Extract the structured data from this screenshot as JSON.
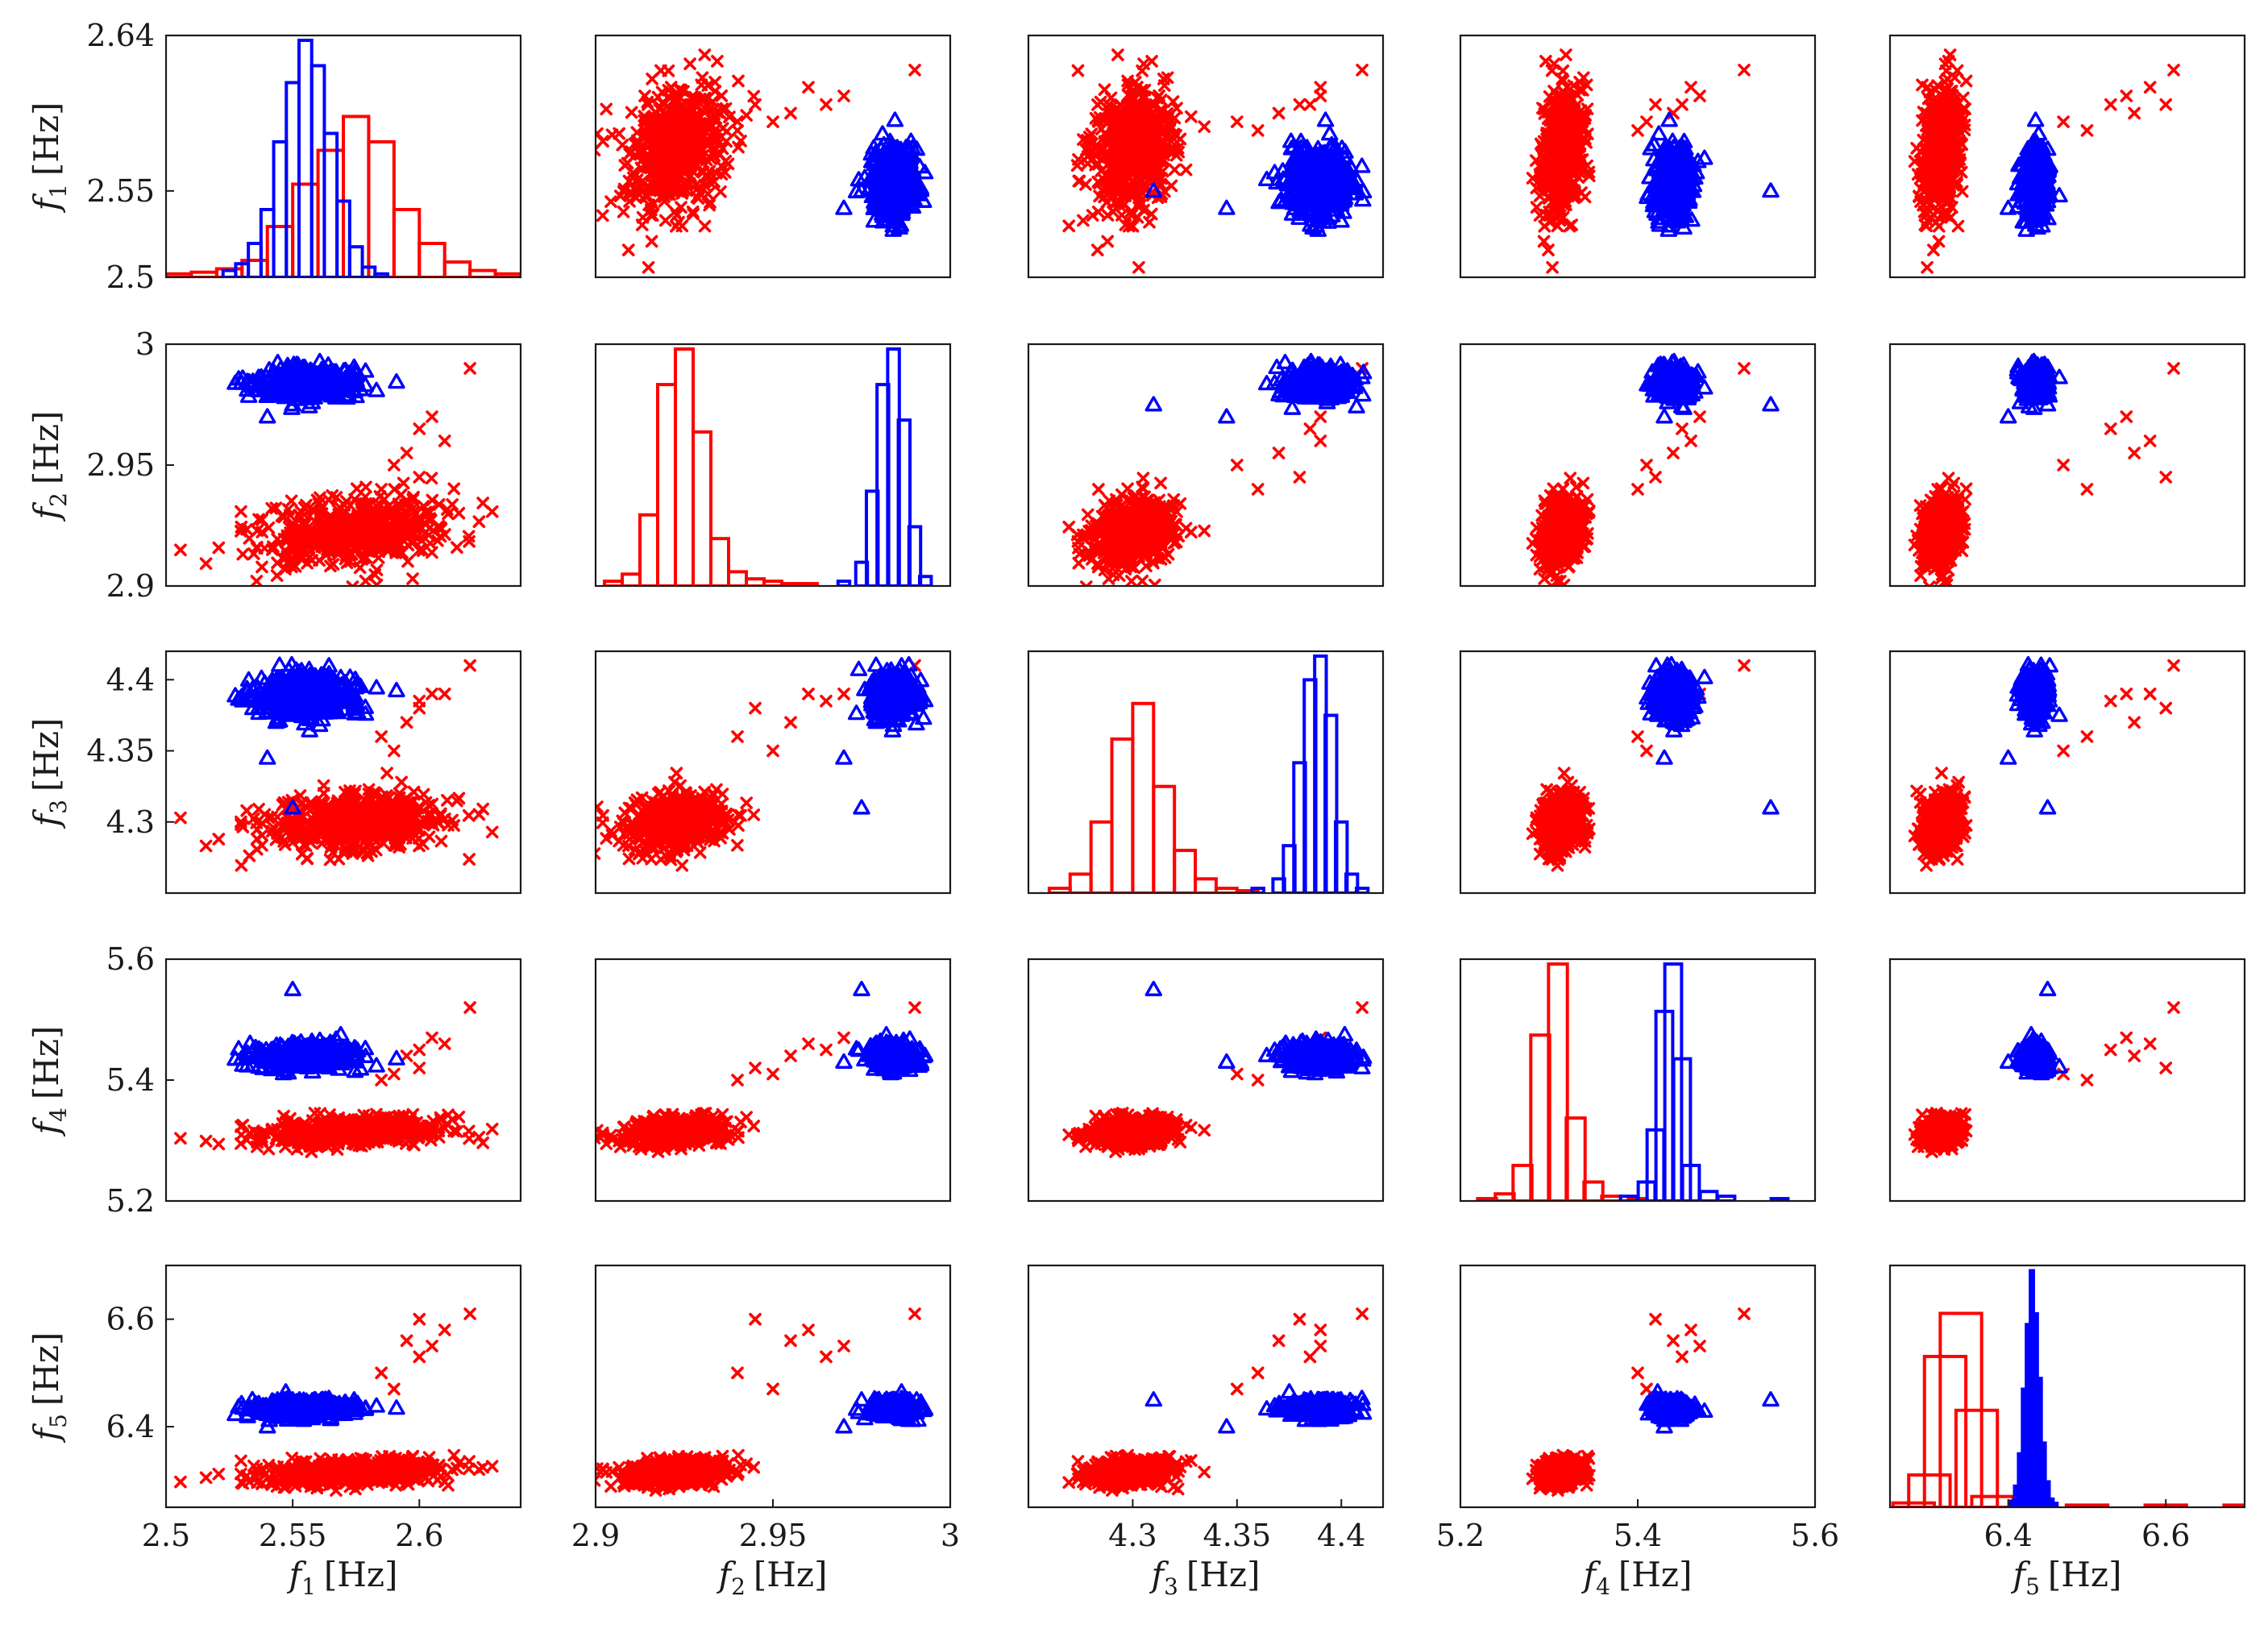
{
  "figure": {
    "description_kind": "scatter-plot matrix of identified natural frequencies",
    "colors": {
      "set_a": "#ff0000",
      "set_b": "#0000ff",
      "axes": "#1a1a1a"
    },
    "markers": {
      "set_a": "cross",
      "set_b": "triangle"
    }
  },
  "chart_data": {
    "type": "scatter",
    "layout": "5x5 scatter matrix, histograms on diagonal",
    "variables": [
      {
        "key": "f1",
        "symbol": "f",
        "sub": "1",
        "unit": "[Hz]",
        "range": [
          2.5,
          2.64
        ],
        "ticks": [
          2.5,
          2.55,
          2.64
        ],
        "x_ticks": [
          "2.5",
          "2.55",
          "2.6"
        ],
        "x_tick_values": [
          2.5,
          2.55,
          2.6
        ],
        "y_ticks": [
          "2.5",
          "2.55",
          "2.64"
        ],
        "y_tick_values": [
          2.5,
          2.55,
          2.64
        ]
      },
      {
        "key": "f2",
        "symbol": "f",
        "sub": "2",
        "unit": "[Hz]",
        "range": [
          2.9,
          3.0
        ],
        "x_ticks": [
          "2.9",
          "2.95",
          "3"
        ],
        "x_tick_values": [
          2.9,
          2.95,
          3.0
        ],
        "y_ticks": [
          "2.9",
          "2.95",
          "3"
        ],
        "y_tick_values": [
          2.9,
          2.95,
          3.0
        ]
      },
      {
        "key": "f3",
        "symbol": "f",
        "sub": "3",
        "unit": "[Hz]",
        "range": [
          4.25,
          4.42
        ],
        "x_ticks": [
          "4.3",
          "4.35",
          "4.4"
        ],
        "x_tick_values": [
          4.3,
          4.35,
          4.4
        ],
        "y_ticks": [
          "4.3",
          "4.35",
          "4.4"
        ],
        "y_tick_values": [
          4.3,
          4.35,
          4.4
        ]
      },
      {
        "key": "f4",
        "symbol": "f",
        "sub": "4",
        "unit": "[Hz]",
        "range": [
          5.2,
          5.6
        ],
        "x_ticks": [
          "5.2",
          "5.4",
          "5.6"
        ],
        "x_tick_values": [
          5.2,
          5.4,
          5.6
        ],
        "y_ticks": [
          "5.2",
          "5.4",
          "5.6"
        ],
        "y_tick_values": [
          5.2,
          5.4,
          5.6
        ]
      },
      {
        "key": "f5",
        "symbol": "f",
        "sub": "5",
        "unit": "[Hz]",
        "range": [
          6.25,
          6.7
        ],
        "x_ticks": [
          "6.4",
          "6.6"
        ],
        "x_tick_values": [
          6.4,
          6.6
        ],
        "y_ticks": [
          "6.4",
          "6.6"
        ],
        "y_tick_values": [
          6.4,
          6.6
        ]
      }
    ],
    "series": [
      {
        "name": "red crosses",
        "color": "#ff0000",
        "marker": "cross",
        "mean": [
          2.575,
          2.922,
          4.3,
          5.315,
          6.315
        ],
        "std": [
          0.018,
          0.007,
          0.01,
          0.012,
          0.012
        ],
        "outliers": [
          [
            2.6,
            2.945,
            4.38,
            5.42,
            6.6
          ],
          [
            2.61,
            2.96,
            4.39,
            5.46,
            6.58
          ],
          [
            2.595,
            2.955,
            4.37,
            5.44,
            6.56
          ],
          [
            2.62,
            2.99,
            4.41,
            5.52,
            6.61
          ],
          [
            2.585,
            2.94,
            4.36,
            5.4,
            6.5
          ],
          [
            2.59,
            2.95,
            4.35,
            5.41,
            6.47
          ],
          [
            2.6,
            2.965,
            4.385,
            5.45,
            6.53
          ],
          [
            2.605,
            2.97,
            4.39,
            5.47,
            6.55
          ]
        ]
      },
      {
        "name": "blue triangles",
        "color": "#0000ff",
        "marker": "triangle",
        "mean": [
          2.555,
          2.984,
          4.39,
          5.44,
          6.435
        ],
        "std": [
          0.01,
          0.003,
          0.008,
          0.01,
          0.008
        ],
        "outliers": [
          [
            2.55,
            2.975,
            4.31,
            5.55,
            6.45
          ],
          [
            2.54,
            2.97,
            4.345,
            5.43,
            6.4
          ]
        ]
      }
    ],
    "histograms": {
      "f1": {
        "red_bins": [
          2.505,
          2.515,
          2.525,
          2.535,
          2.545,
          2.555,
          2.565,
          2.575,
          2.585,
          2.595,
          2.605,
          2.615,
          2.625,
          2.635
        ],
        "red_counts": [
          2,
          3,
          5,
          10,
          30,
          55,
          75,
          95,
          80,
          40,
          20,
          9,
          4,
          2
        ],
        "blue_bins": [
          2.525,
          2.53,
          2.535,
          2.54,
          2.545,
          2.55,
          2.555,
          2.56,
          2.565,
          2.57,
          2.575,
          2.58,
          2.585
        ],
        "blue_counts": [
          4,
          8,
          20,
          40,
          80,
          115,
          140,
          125,
          85,
          45,
          18,
          6,
          2
        ]
      },
      "f2": {
        "red_bins": [
          2.905,
          2.91,
          2.915,
          2.92,
          2.925,
          2.93,
          2.935,
          2.94,
          2.945,
          2.95,
          2.955,
          2.96
        ],
        "red_counts": [
          2,
          5,
          30,
          85,
          100,
          65,
          20,
          6,
          3,
          2,
          1,
          1
        ],
        "blue_bins": [
          2.97,
          2.975,
          2.978,
          2.981,
          2.984,
          2.987,
          2.99,
          2.993
        ],
        "blue_counts": [
          2,
          10,
          40,
          85,
          100,
          70,
          25,
          4
        ]
      },
      "f3": {
        "red_bins": [
          4.265,
          4.275,
          4.285,
          4.295,
          4.305,
          4.315,
          4.325,
          4.335,
          4.345,
          4.355
        ],
        "red_counts": [
          2,
          8,
          30,
          65,
          80,
          45,
          18,
          6,
          2,
          1
        ],
        "blue_bins": [
          4.36,
          4.37,
          4.375,
          4.38,
          4.385,
          4.39,
          4.395,
          4.4,
          4.405,
          4.41
        ],
        "blue_counts": [
          2,
          6,
          20,
          55,
          90,
          100,
          75,
          30,
          8,
          2
        ]
      },
      "f4": {
        "red_bins": [
          5.23,
          5.25,
          5.27,
          5.29,
          5.31,
          5.33,
          5.35,
          5.37,
          5.4
        ],
        "red_counts": [
          1,
          3,
          15,
          70,
          100,
          35,
          8,
          2,
          1
        ],
        "blue_bins": [
          5.39,
          5.41,
          5.42,
          5.43,
          5.44,
          5.45,
          5.46,
          5.48,
          5.5,
          5.56
        ],
        "blue_counts": [
          2,
          8,
          30,
          80,
          100,
          60,
          15,
          4,
          2,
          1
        ]
      },
      "f5": {
        "red_bins": [
          6.28,
          6.3,
          6.32,
          6.34,
          6.36,
          6.38,
          6.5,
          6.6,
          6.7
        ],
        "red_counts": [
          2,
          15,
          70,
          90,
          45,
          5,
          1,
          1,
          1
        ],
        "blue_bins": [
          6.405,
          6.41,
          6.415,
          6.42,
          6.425,
          6.43,
          6.435,
          6.44,
          6.445,
          6.45,
          6.455,
          6.46
        ],
        "blue_counts": [
          3,
          10,
          25,
          55,
          85,
          110,
          90,
          60,
          30,
          12,
          4,
          2
        ]
      }
    },
    "xlabel_suffix": "[Hz]",
    "ylabel_suffix": "[Hz]"
  }
}
